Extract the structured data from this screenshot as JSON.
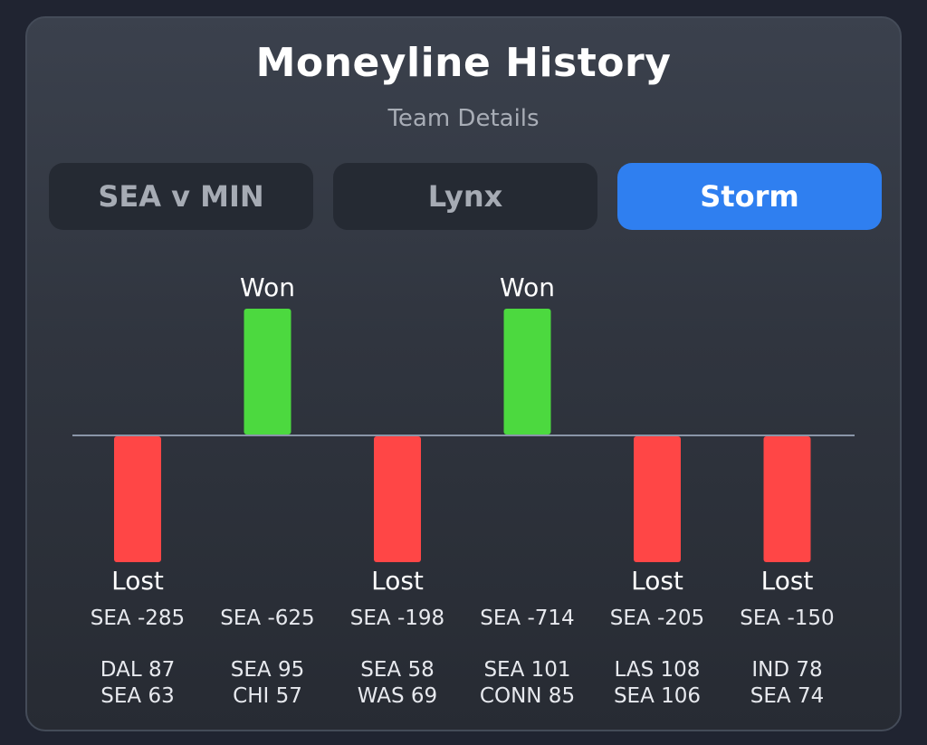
{
  "header": {
    "title": "Moneyline History",
    "subtitle": "Team Details"
  },
  "tabs": [
    {
      "label": "SEA v MIN",
      "active": false
    },
    {
      "label": "Lynx",
      "active": false
    },
    {
      "label": "Storm",
      "active": true
    }
  ],
  "colors": {
    "won": "#4cd93f",
    "lost": "#ff4646",
    "accent": "#2f7ff0",
    "baseline": "#8a95a8"
  },
  "chart_data": {
    "type": "bar",
    "categories": [
      "DAL 87 SEA 63",
      "SEA 95 CHI 57",
      "SEA 58 WAS 69",
      "SEA 101 CONN 85",
      "LAS 108 SEA 106",
      "IND 78 SEA 74"
    ],
    "values": [
      -1,
      1,
      -1,
      1,
      -1,
      -1
    ],
    "ylim": [
      -1,
      1
    ],
    "games": [
      {
        "result": "Lost",
        "line": "SEA -285",
        "score1": "DAL 87",
        "score2": "SEA 63"
      },
      {
        "result": "Won",
        "line": "SEA -625",
        "score1": "SEA 95",
        "score2": "CHI 57"
      },
      {
        "result": "Lost",
        "line": "SEA -198",
        "score1": "SEA 58",
        "score2": "WAS 69"
      },
      {
        "result": "Won",
        "line": "SEA -714",
        "score1": "SEA 101",
        "score2": "CONN 85"
      },
      {
        "result": "Lost",
        "line": "SEA -205",
        "score1": "LAS 108",
        "score2": "SEA 106"
      },
      {
        "result": "Lost",
        "line": "SEA -150",
        "score1": "IND 78",
        "score2": "SEA 74"
      }
    ]
  }
}
